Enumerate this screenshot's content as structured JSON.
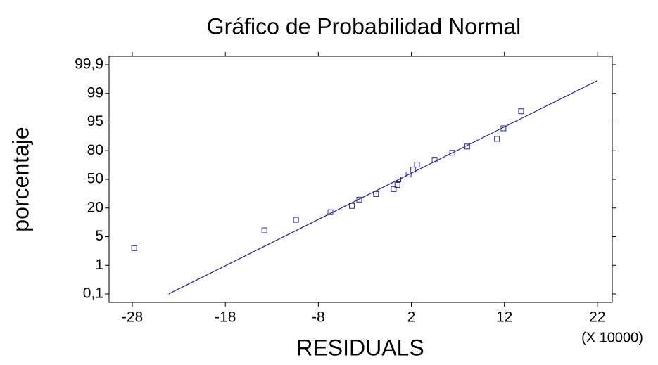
{
  "chart_data": {
    "type": "probability-plot",
    "title": "Gráfico de Probabilidad Normal",
    "xlabel": "RESIDUALS",
    "ylabel": "porcentaje",
    "x_multiplier_label": "(X 10000)",
    "yscale": "probability",
    "xlim": [
      -30.5,
      23.6
    ],
    "xticks": [
      -28,
      -18,
      -8,
      2,
      12,
      22
    ],
    "ylim": [
      0.1,
      99.9
    ],
    "yticks": [
      {
        "value": 0.1,
        "label": "0,1"
      },
      1,
      5,
      20,
      50,
      80,
      95,
      99,
      {
        "value": 99.9,
        "label": "99,9"
      }
    ],
    "series": [
      {
        "color": "#2b2b9c",
        "x": [
          -27.8,
          -13.8,
          -10.4,
          -6.7,
          -4.4,
          -3.6,
          -1.8,
          0.1,
          0.5,
          0.6,
          1.7,
          2.2,
          2.6,
          4.5,
          6.4,
          8.0,
          11.2,
          11.9,
          13.8
        ],
        "values": [
          3.4,
          8.3,
          13.8,
          17.8,
          22.2,
          28.8,
          34.6,
          39.8,
          44.1,
          50,
          55.1,
          60.2,
          65.4,
          70.5,
          77.8,
          82.2,
          86.2,
          91.7,
          96.5
        ]
      }
    ],
    "fit_line": {
      "color": "#1f1f8f",
      "x": [
        -24.1,
        22
      ],
      "values": [
        0.1,
        99.4
      ]
    }
  }
}
